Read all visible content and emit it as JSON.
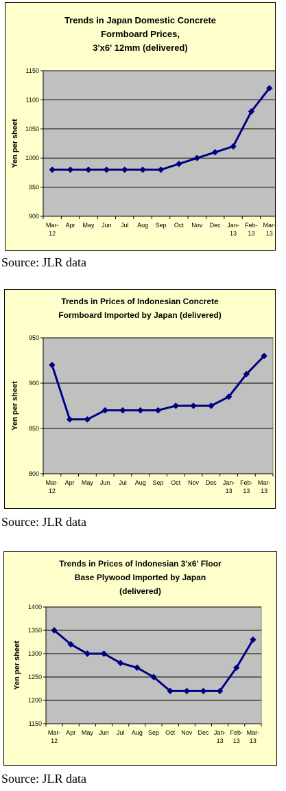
{
  "colors": {
    "line": "#000080",
    "plot_area": "#c0c0c0",
    "background": "#ffffcc",
    "grid": "#000000"
  },
  "chart_data": [
    {
      "type": "line",
      "title_lines": [
        "Trends in Japan Domestic Concrete",
        "Formboard Prices,",
        "3'x6' 12mm (delivered)"
      ],
      "ylabel": "Yen per sheet",
      "categories": [
        [
          "Mar-",
          "12"
        ],
        [
          "Apr"
        ],
        [
          "May"
        ],
        [
          "Jun"
        ],
        [
          "Jul"
        ],
        [
          "Aug"
        ],
        [
          "Sep"
        ],
        [
          "Oct"
        ],
        [
          "Nov"
        ],
        [
          "Dec"
        ],
        [
          "Jan-",
          "13"
        ],
        [
          "Feb-",
          "13"
        ],
        [
          "Mar-",
          "13"
        ]
      ],
      "values": [
        980,
        980,
        980,
        980,
        980,
        980,
        980,
        990,
        1000,
        1010,
        1020,
        1080,
        1120
      ],
      "ylim": [
        900,
        1150
      ],
      "yticks": [
        900,
        950,
        1000,
        1050,
        1100,
        1150
      ],
      "grid": "horizontal",
      "legend": "none"
    },
    {
      "type": "line",
      "title_lines": [
        "Trends in Prices of Indonesian Concrete",
        "Formboard Imported by Japan (delivered)"
      ],
      "ylabel": "Yen per sheet",
      "categories": [
        [
          "Mar-",
          "12"
        ],
        [
          "Apr"
        ],
        [
          "May"
        ],
        [
          "Jun"
        ],
        [
          "Jul"
        ],
        [
          "Aug"
        ],
        [
          "Sep"
        ],
        [
          "Oct"
        ],
        [
          "Nov"
        ],
        [
          "Dec"
        ],
        [
          "Jan-",
          "13"
        ],
        [
          "Feb-",
          "13"
        ],
        [
          "Mar-",
          "13"
        ]
      ],
      "values": [
        920,
        860,
        860,
        870,
        870,
        870,
        870,
        875,
        875,
        875,
        885,
        910,
        930
      ],
      "ylim": [
        800,
        950
      ],
      "yticks": [
        800,
        850,
        900,
        950
      ],
      "yticklabels": [
        "800",
        "850",
        "900",
        "950"
      ],
      "grid": "horizontal",
      "legend": "none"
    },
    {
      "type": "line",
      "title_lines": [
        "Trends in Prices of Indonesian 3'x6' Floor",
        "Base Plywood Imported by Japan",
        "(delivered)"
      ],
      "ylabel": "Yen per sheet",
      "categories": [
        [
          "Mar-",
          "12"
        ],
        [
          "Apr"
        ],
        [
          "May"
        ],
        [
          "Jun"
        ],
        [
          "Jul"
        ],
        [
          "Aug"
        ],
        [
          "Sep"
        ],
        [
          "Oct"
        ],
        [
          "Nov"
        ],
        [
          "Dec"
        ],
        [
          "Jan-",
          "13"
        ],
        [
          "Feb-",
          "13"
        ],
        [
          "Mar-",
          "13"
        ]
      ],
      "values": [
        1350,
        1320,
        1300,
        1300,
        1280,
        1270,
        1250,
        1220,
        1220,
        1220,
        1220,
        1270,
        1330
      ],
      "ylim": [
        1150,
        1400
      ],
      "yticks": [
        1150,
        1200,
        1250,
        1300,
        1350,
        1400
      ],
      "grid": "horizontal",
      "legend": "none"
    }
  ],
  "sources": [
    "Source: JLR data",
    "Source: JLR data",
    "Source: JLR data"
  ]
}
